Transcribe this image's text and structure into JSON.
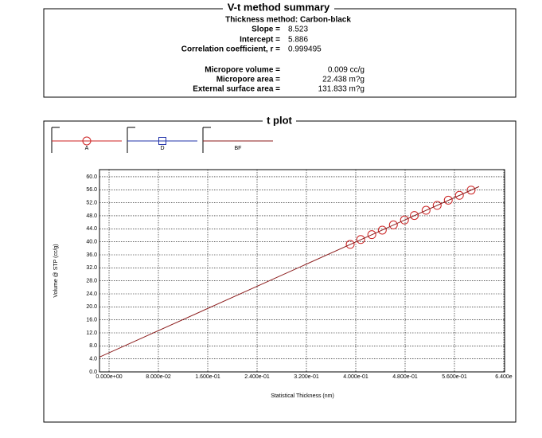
{
  "summary": {
    "title": "V-t method summary",
    "method": "Thickness method: Carbon-black",
    "rows": [
      {
        "label": "Slope =",
        "value": "8.523"
      },
      {
        "label": "Intercept =",
        "value": "5.886"
      },
      {
        "label": "Correlation coefficient, r =",
        "value": "0.999495"
      },
      {
        "label": "Micropore volume =",
        "value": "0.009 cc/g"
      },
      {
        "label": "Micropore area =",
        "value": "22.438 m?g"
      },
      {
        "label": "External surface area =",
        "value": "131.833 m?g"
      }
    ]
  },
  "chart_data": {
    "type": "scatter",
    "title": "t plot",
    "x_label": "Statistical Thickness (nm)",
    "y_label": "Volume @ STP (cc/g)",
    "series": [
      {
        "name": "A",
        "color": "#cc2222",
        "marker": "circle",
        "line": false,
        "x": [
          0.391,
          0.408,
          0.426,
          0.443,
          0.461,
          0.479,
          0.495,
          0.514,
          0.532,
          0.55,
          0.568,
          0.587
        ],
        "values": [
          39.2,
          40.7,
          42.2,
          43.6,
          45.2,
          46.7,
          48.1,
          49.7,
          51.2,
          52.8,
          54.3,
          55.9
        ]
      },
      {
        "name": "D",
        "color": "#2233aa",
        "marker": "square",
        "line": false,
        "x": [],
        "values": []
      },
      {
        "name": "BF",
        "color": "#8b1a1a",
        "marker": "none",
        "line": true,
        "x": [
          -0.015,
          0.6
        ],
        "values": [
          4.6,
          57.0
        ]
      }
    ],
    "xlim": [
      -0.0155,
      0.6413
    ],
    "ylim": [
      0,
      62.2
    ],
    "xticks": [
      {
        "value": 0,
        "label": "0.000e+00"
      },
      {
        "value": 0.08,
        "label": "8.000e-02"
      },
      {
        "value": 0.16,
        "label": "1.600e-01"
      },
      {
        "value": 0.24,
        "label": "2.400e-01"
      },
      {
        "value": 0.32,
        "label": "3.200e-01"
      },
      {
        "value": 0.4,
        "label": "4.000e-01"
      },
      {
        "value": 0.48,
        "label": "4.800e-01"
      },
      {
        "value": 0.56,
        "label": "5.600e-01"
      },
      {
        "value": 0.64,
        "label": "6.400e"
      }
    ],
    "yticks": [
      {
        "value": 0,
        "label": "0.0"
      },
      {
        "value": 4,
        "label": "4.0"
      },
      {
        "value": 8,
        "label": "8.0"
      },
      {
        "value": 12,
        "label": "12.0"
      },
      {
        "value": 16,
        "label": "16.0"
      },
      {
        "value": 20,
        "label": "20.0"
      },
      {
        "value": 24,
        "label": "24.0"
      },
      {
        "value": 28,
        "label": "28.0"
      },
      {
        "value": 32,
        "label": "32.0"
      },
      {
        "value": 36,
        "label": "36.0"
      },
      {
        "value": 40,
        "label": "40.0"
      },
      {
        "value": 44,
        "label": "44.0"
      },
      {
        "value": 48,
        "label": "48.0"
      },
      {
        "value": 52,
        "label": "52.0"
      },
      {
        "value": 56,
        "label": "56.0"
      },
      {
        "value": 60,
        "label": "60.0"
      }
    ],
    "grid": true
  }
}
